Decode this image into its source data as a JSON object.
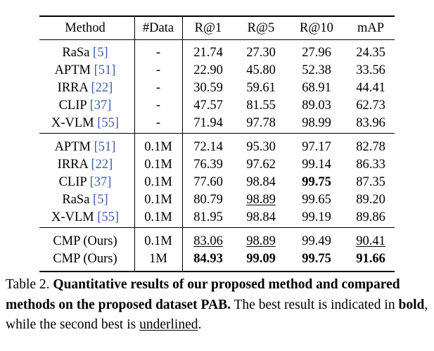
{
  "table": {
    "headers": [
      "Method",
      "#Data",
      "R@1",
      "R@5",
      "R@10",
      "mAP"
    ],
    "group1": [
      {
        "method": "RaSa",
        "cite": "[5]",
        "data": "-",
        "r1": "21.74",
        "r5": "27.30",
        "r10": "27.96",
        "map": "24.35"
      },
      {
        "method": "APTM",
        "cite": "[51]",
        "data": "-",
        "r1": "22.90",
        "r5": "45.80",
        "r10": "52.38",
        "map": "33.56"
      },
      {
        "method": "IRRA",
        "cite": "[22]",
        "data": "-",
        "r1": "30.59",
        "r5": "59.61",
        "r10": "68.91",
        "map": "44.41"
      },
      {
        "method": "CLIP",
        "cite": "[37]",
        "data": "-",
        "r1": "47.57",
        "r5": "81.55",
        "r10": "89.03",
        "map": "62.73"
      },
      {
        "method": "X-VLM",
        "cite": "[55]",
        "data": "-",
        "r1": "71.94",
        "r5": "97.78",
        "r10": "98.99",
        "map": "83.96"
      }
    ],
    "group2": [
      {
        "method": "APTM",
        "cite": "[51]",
        "data": "0.1M",
        "r1": "72.14",
        "r5": "95.30",
        "r10": "97.17",
        "map": "82.78"
      },
      {
        "method": "IRRA",
        "cite": "[22]",
        "data": "0.1M",
        "r1": "76.39",
        "r5": "97.62",
        "r10": "99.14",
        "map": "86.33"
      },
      {
        "method": "CLIP",
        "cite": "[37]",
        "data": "0.1M",
        "r1": "77.60",
        "r5": "98.84",
        "r10": "99.75",
        "map": "87.35"
      },
      {
        "method": "RaSa",
        "cite": "[5]",
        "data": "0.1M",
        "r1": "80.79",
        "r5": "98.89",
        "r10": "99.65",
        "map": "89.20"
      },
      {
        "method": "X-VLM",
        "cite": "[55]",
        "data": "0.1M",
        "r1": "81.95",
        "r5": "98.84",
        "r10": "99.19",
        "map": "89.86"
      }
    ],
    "group3": [
      {
        "method": "CMP (Ours)",
        "cite": "",
        "data": "0.1M",
        "r1": "83.06",
        "r5": "98.89",
        "r10": "99.49",
        "map": "90.41"
      },
      {
        "method": "CMP (Ours)",
        "cite": "",
        "data": "1M",
        "r1": "84.93",
        "r5": "99.09",
        "r10": "99.75",
        "map": "91.66"
      }
    ]
  },
  "caption": {
    "label": "Table 2.",
    "bold_text": "Quantitative results of our proposed method and compared methods on the proposed dataset PAB.",
    "text1": "The best result is indicated in",
    "bold_word": "bold",
    "text2": ", while the second best is",
    "underlined_word": "underlined",
    "text3": "."
  }
}
